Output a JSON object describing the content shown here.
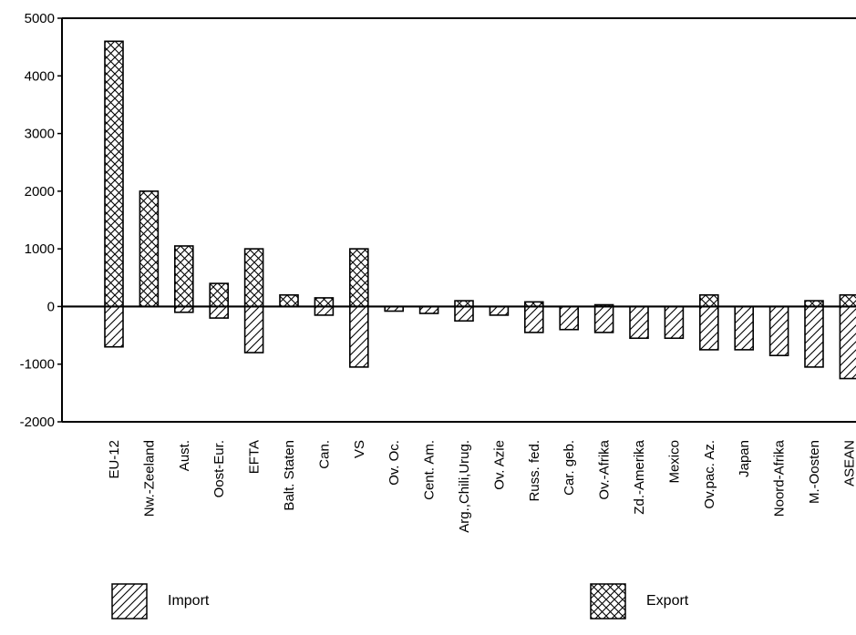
{
  "chart_data": {
    "type": "bar",
    "categories": [
      "EU-12",
      "Nw.-Zeeland",
      "Aust.",
      "Oost-Eur.",
      "EFTA",
      "Balt. Staten",
      "Can.",
      "VS",
      "Ov. Oc.",
      "Cent. Am.",
      "Arg.,Chili,Urug.",
      "Ov. Azie",
      "Russ. fed.",
      "Car. geb.",
      "Ov.-Afrika",
      "Zd.-Amerika",
      "Mexico",
      "Ov.pac. Az.",
      "Japan",
      "Noord-Afrika",
      "M.-Oosten",
      "ASEAN"
    ],
    "series": [
      {
        "name": "Import",
        "values": [
          -700,
          0,
          -100,
          -200,
          -800,
          0,
          -150,
          -1050,
          -80,
          -120,
          -250,
          -150,
          -450,
          -400,
          -450,
          -550,
          -550,
          -750,
          -750,
          -850,
          -1050,
          -1250
        ]
      },
      {
        "name": "Export",
        "values": [
          4600,
          2000,
          1050,
          400,
          1000,
          200,
          150,
          1000,
          0,
          0,
          100,
          0,
          80,
          0,
          30,
          0,
          0,
          200,
          0,
          0,
          100,
          200
        ]
      }
    ],
    "yticks": [
      "5000",
      "4000",
      "3000",
      "2000",
      "1000",
      "0",
      "-1000",
      "-2000"
    ],
    "ylim": [
      -2000,
      5000
    ],
    "xlabel": "",
    "ylabel": "",
    "title": "",
    "grid": false,
    "legend_position": "bottom"
  },
  "legend": {
    "import_label": "Import",
    "export_label": "Export"
  }
}
